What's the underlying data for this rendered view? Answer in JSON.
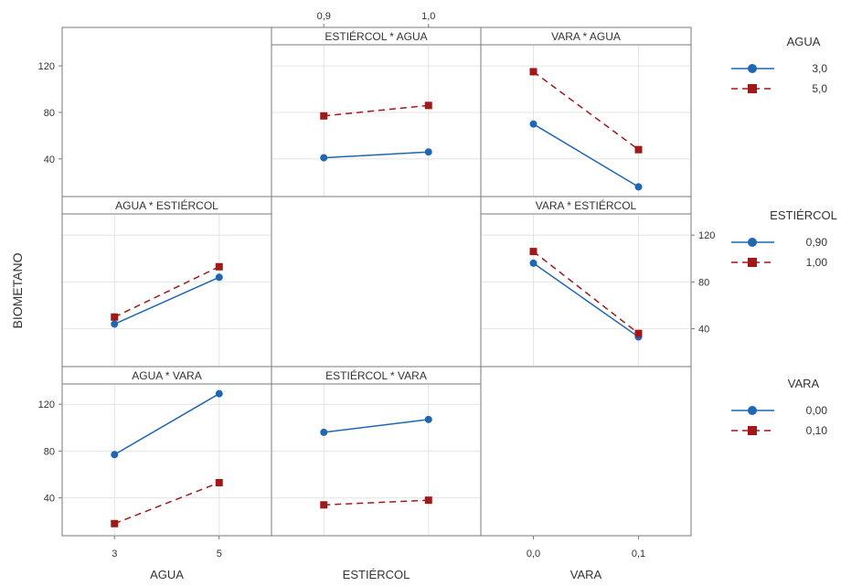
{
  "figure": {
    "ylabel": "BIOMETANO",
    "xlabels": [
      "AGUA",
      "ESTIÉRCOL",
      "VARA"
    ],
    "colors": {
      "blue": "#1f66b3",
      "red": "#a01818",
      "frame": "#7a7a7a",
      "grid": "#e4e4e4"
    }
  },
  "legends": [
    {
      "title": "AGUA",
      "items": [
        {
          "label": "3,0",
          "series": 0
        },
        {
          "label": "5,0",
          "series": 1
        }
      ]
    },
    {
      "title": "ESTIÉRCOL",
      "items": [
        {
          "label": "0,90",
          "series": 0
        },
        {
          "label": "1,00",
          "series": 1
        }
      ]
    },
    {
      "title": "VARA",
      "items": [
        {
          "label": "0,00",
          "series": 0
        },
        {
          "label": "0,10",
          "series": 1
        }
      ]
    }
  ],
  "chart_data": [
    {
      "type": "line",
      "title": "ESTIÉRCOL * AGUA",
      "row": 0,
      "col": 1,
      "x": [
        0.9,
        1.0
      ],
      "x_ticklabels": [
        "0,9",
        "1,0"
      ],
      "x_axis": "top",
      "series": [
        {
          "name": "3,0",
          "values": [
            41,
            46
          ]
        },
        {
          "name": "5,0",
          "values": [
            77,
            86
          ]
        }
      ]
    },
    {
      "type": "line",
      "title": "VARA * AGUA",
      "row": 0,
      "col": 2,
      "x": [
        0.0,
        0.1
      ],
      "series": [
        {
          "name": "3,0",
          "values": [
            70,
            16
          ]
        },
        {
          "name": "5,0",
          "values": [
            115,
            48
          ]
        }
      ]
    },
    {
      "type": "line",
      "title": "AGUA * ESTIÉRCOL",
      "row": 1,
      "col": 0,
      "x": [
        3,
        5
      ],
      "series": [
        {
          "name": "0,90",
          "values": [
            44,
            84
          ]
        },
        {
          "name": "1,00",
          "values": [
            50,
            93
          ]
        }
      ]
    },
    {
      "type": "line",
      "title": "VARA * ESTIÉRCOL",
      "row": 1,
      "col": 2,
      "x": [
        0.0,
        0.1
      ],
      "series": [
        {
          "name": "0,90",
          "values": [
            96,
            33
          ]
        },
        {
          "name": "1,00",
          "values": [
            106,
            36
          ]
        }
      ]
    },
    {
      "type": "line",
      "title": "AGUA * VARA",
      "row": 2,
      "col": 0,
      "x": [
        3,
        5
      ],
      "series": [
        {
          "name": "0,00",
          "values": [
            77,
            129
          ]
        },
        {
          "name": "0,10",
          "values": [
            18,
            53
          ]
        }
      ]
    },
    {
      "type": "line",
      "title": "ESTIÉRCOL * VARA",
      "row": 2,
      "col": 1,
      "x": [
        0.9,
        1.0
      ],
      "series": [
        {
          "name": "0,00",
          "values": [
            96,
            107
          ]
        },
        {
          "name": "0,10",
          "values": [
            34,
            38
          ]
        }
      ]
    }
  ],
  "axes": {
    "y_ticks": [
      40,
      80,
      120
    ],
    "y_ticklabels": [
      "40",
      "80",
      "120"
    ],
    "ylim": [
      10,
      135
    ],
    "bottom_ticks": [
      {
        "col": 0,
        "labels": [
          "3",
          "5"
        ]
      },
      {
        "col": 2,
        "labels": [
          "0,0",
          "0,1"
        ]
      }
    ]
  }
}
